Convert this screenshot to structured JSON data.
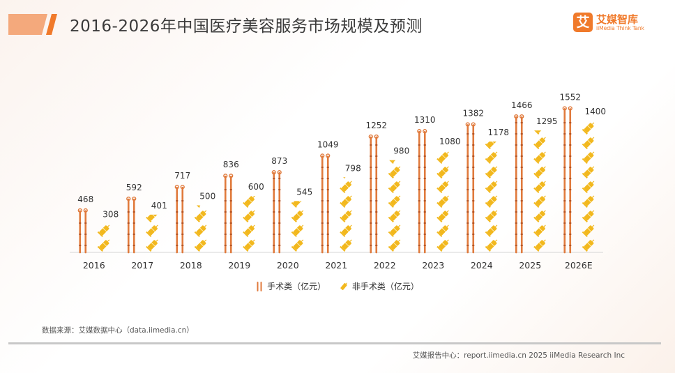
{
  "page": {
    "title": "2016-2026年中国医疗美容服务市场规模及预测",
    "source": "数据来源：艾媒数据中心（data.iimedia.cn）",
    "footer": "艾媒报告中心：report.iimedia.cn  2025 iiMedia Research Inc"
  },
  "brand": {
    "logo_mark": "艾",
    "logo_cn": "艾媒智库",
    "logo_en": "iiMedia Think Tank",
    "accent_color": "#f07a2b"
  },
  "chart_data": {
    "type": "bar",
    "categories": [
      "2016",
      "2017",
      "2018",
      "2019",
      "2020",
      "2021",
      "2022",
      "2023",
      "2024",
      "2025",
      "2026E"
    ],
    "series": [
      {
        "name": "手术类（亿元）",
        "values": [
          468,
          592,
          717,
          836,
          873,
          1049,
          1252,
          1310,
          1382,
          1466,
          1552
        ],
        "color": "#e07a3c",
        "icon": "surgical-scissors-icon"
      },
      {
        "name": "非手术类（亿元）",
        "values": [
          308,
          401,
          500,
          600,
          545,
          798,
          980,
          1080,
          1178,
          1295,
          1400
        ],
        "color": "#f2b81e",
        "icon": "syringe-icon"
      }
    ],
    "ylim": [
      0,
      1600
    ],
    "grid": false,
    "legend_position": "bottom"
  }
}
